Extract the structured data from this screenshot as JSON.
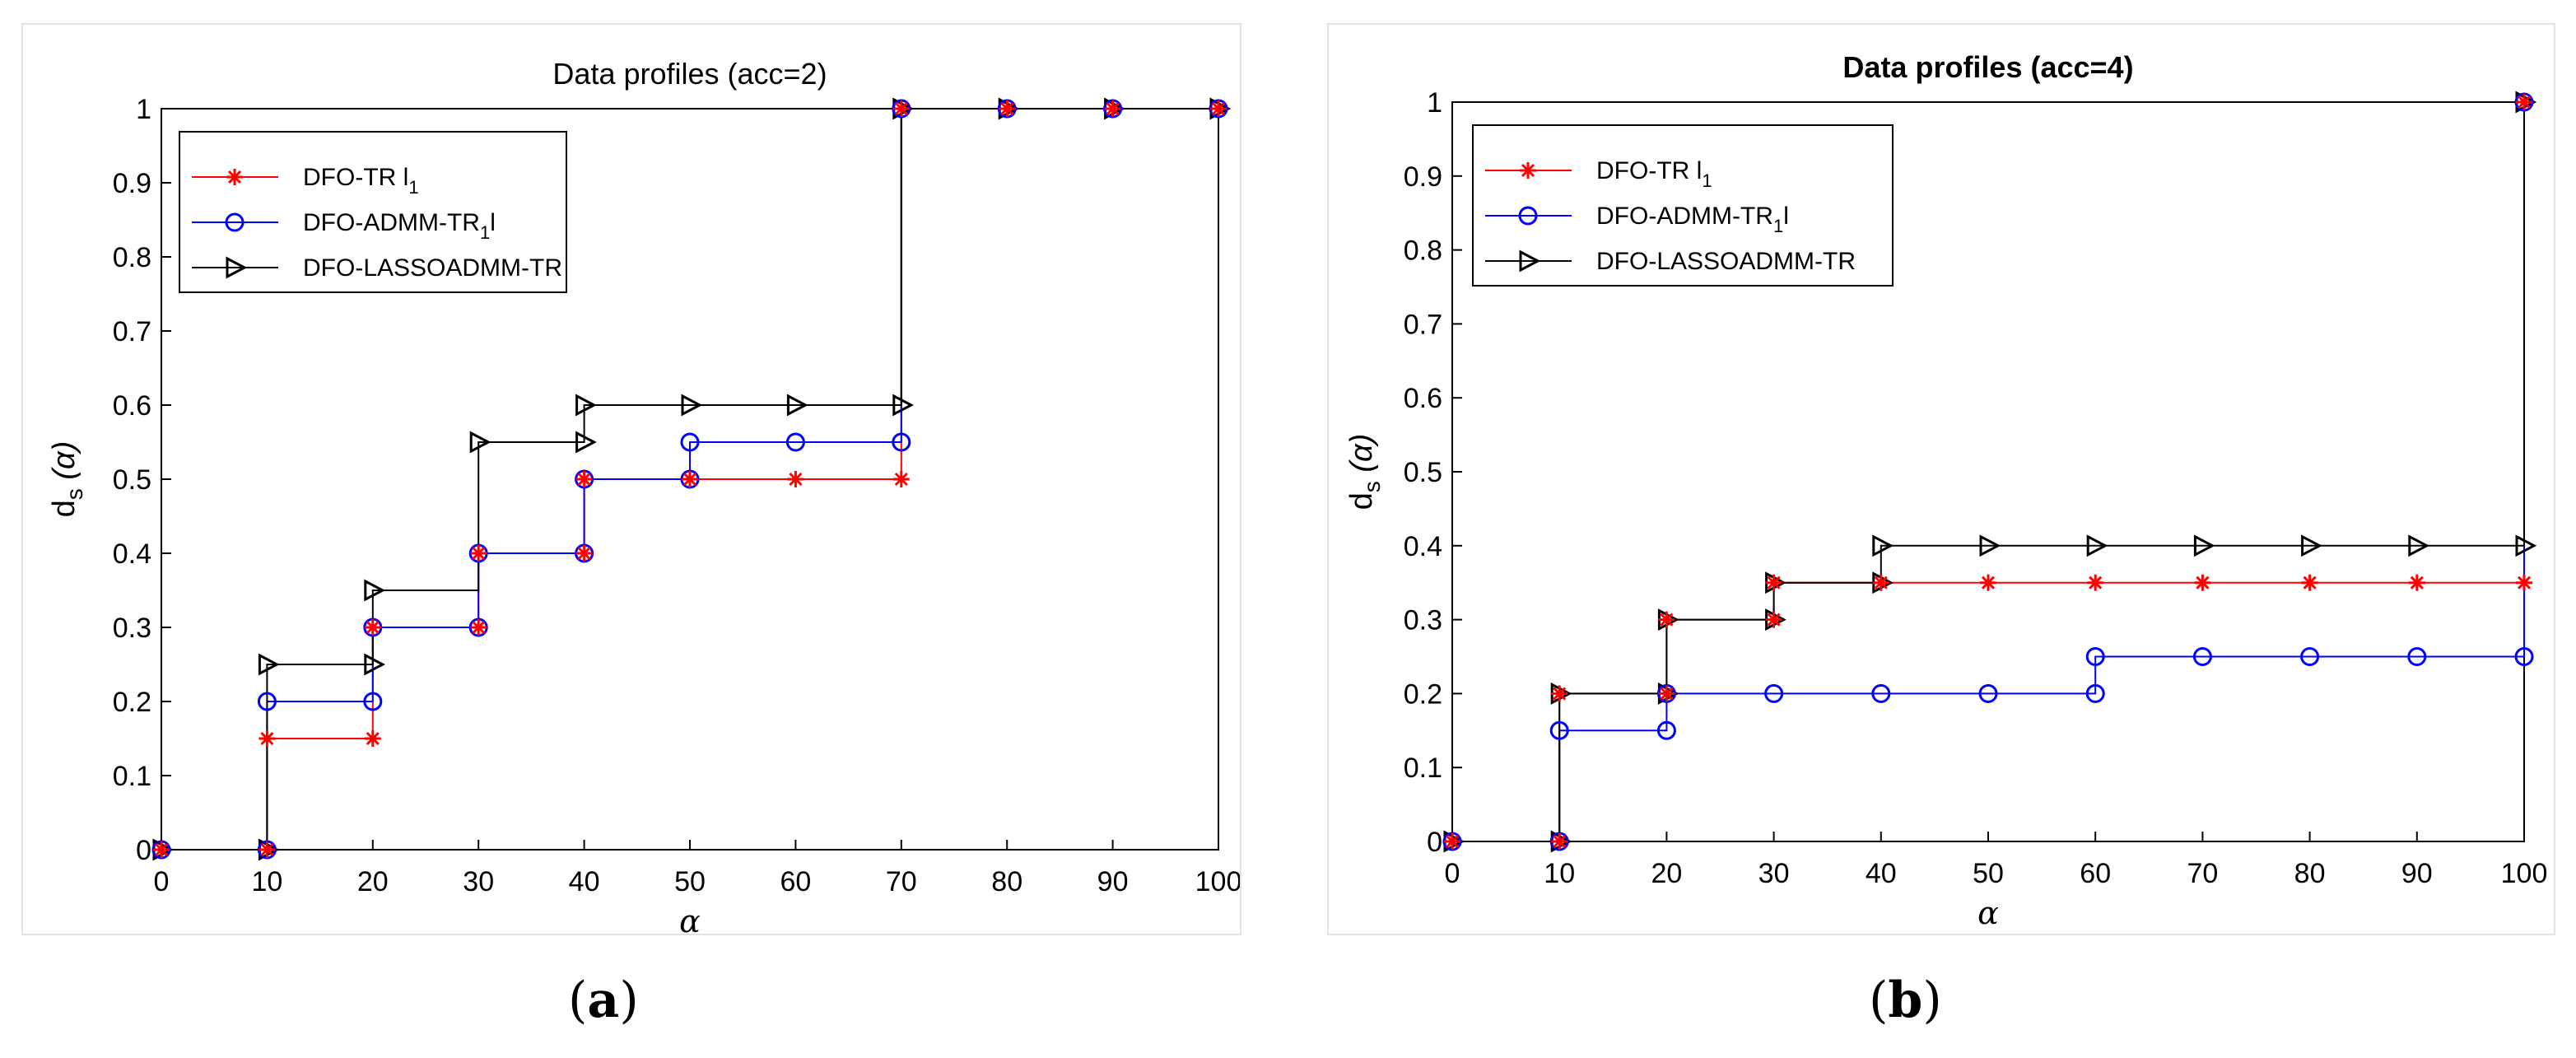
{
  "figure": {
    "captions": [
      {
        "open": "(",
        "letter": "a",
        "close": ")"
      },
      {
        "open": "(",
        "letter": "b",
        "close": ")"
      }
    ]
  },
  "chart_data": [
    {
      "type": "line",
      "title": "Data profiles (acc=2)",
      "title_bold": false,
      "xlabel": "α",
      "ylabel_main": "d",
      "ylabel_sub": "s",
      "ylabel_arg": "(α)",
      "xlim": [
        0,
        100
      ],
      "ylim": [
        0,
        1
      ],
      "xticks": [
        0,
        10,
        20,
        30,
        40,
        50,
        60,
        70,
        80,
        90,
        100
      ],
      "xtick_labels": [
        "0",
        "10",
        "20",
        "30",
        "40",
        "50",
        "60",
        "70",
        "80",
        "90",
        "100"
      ],
      "yticks": [
        0,
        0.1,
        0.2,
        0.3,
        0.4,
        0.5,
        0.6,
        0.7,
        0.8,
        0.9,
        1
      ],
      "ytick_labels": [
        "0",
        "0.1",
        "0.2",
        "0.3",
        "0.4",
        "0.5",
        "0.6",
        "0.7",
        "0.8",
        "0.9",
        "1"
      ],
      "step": "post",
      "x": [
        0,
        10,
        20,
        30,
        40,
        50,
        60,
        70,
        80,
        90,
        100
      ],
      "series": [
        {
          "name": "DFO-TR l",
          "legend_main": "DFO-TR l",
          "legend_sub": "1",
          "legend_tail": "",
          "color": "#ff0000",
          "marker": "star",
          "values": [
            0,
            0.15,
            0.3,
            0.4,
            0.5,
            0.5,
            0.5,
            1,
            1,
            1,
            1
          ]
        },
        {
          "name": "DFO-ADMM-TR1l",
          "legend_main": "DFO-ADMM-TR",
          "legend_sub": "1",
          "legend_tail": "l",
          "color": "#0000ff",
          "marker": "circle",
          "values": [
            0,
            0.2,
            0.3,
            0.4,
            0.5,
            0.55,
            0.55,
            1,
            1,
            1,
            1
          ]
        },
        {
          "name": "DFO-LASSOADMM-TR",
          "legend_main": "DFO-LASSOADMM-TR",
          "legend_sub": "",
          "legend_tail": "",
          "color": "#000000",
          "marker": "triangle-right",
          "values": [
            0,
            0.25,
            0.35,
            0.55,
            0.6,
            0.6,
            0.6,
            1,
            1,
            1,
            1
          ]
        }
      ],
      "marker_points": {
        "DFO-TR l": [
          [
            0,
            0
          ],
          [
            10,
            0
          ],
          [
            10,
            0.15
          ],
          [
            20,
            0.15
          ],
          [
            20,
            0.3
          ],
          [
            30,
            0.3
          ],
          [
            30,
            0.4
          ],
          [
            40,
            0.4
          ],
          [
            40,
            0.5
          ],
          [
            50,
            0.5
          ],
          [
            60,
            0.5
          ],
          [
            70,
            0.5
          ],
          [
            70,
            1
          ],
          [
            80,
            1
          ],
          [
            90,
            1
          ],
          [
            100,
            1
          ]
        ],
        "DFO-ADMM-TR1l": [
          [
            0,
            0
          ],
          [
            10,
            0
          ],
          [
            10,
            0.2
          ],
          [
            20,
            0.2
          ],
          [
            20,
            0.3
          ],
          [
            30,
            0.3
          ],
          [
            30,
            0.4
          ],
          [
            40,
            0.4
          ],
          [
            40,
            0.5
          ],
          [
            50,
            0.5
          ],
          [
            50,
            0.55
          ],
          [
            60,
            0.55
          ],
          [
            70,
            0.55
          ],
          [
            70,
            1
          ],
          [
            80,
            1
          ],
          [
            90,
            1
          ],
          [
            100,
            1
          ]
        ],
        "DFO-LASSOADMM-TR": [
          [
            0,
            0
          ],
          [
            10,
            0
          ],
          [
            10,
            0.25
          ],
          [
            20,
            0.25
          ],
          [
            20,
            0.35
          ],
          [
            30,
            0.55
          ],
          [
            40,
            0.55
          ],
          [
            40,
            0.6
          ],
          [
            50,
            0.6
          ],
          [
            60,
            0.6
          ],
          [
            70,
            0.6
          ],
          [
            70,
            1
          ],
          [
            80,
            1
          ],
          [
            90,
            1
          ],
          [
            100,
            1
          ]
        ]
      },
      "legend_location": "top-left"
    },
    {
      "type": "line",
      "title": "Data profiles (acc=4)",
      "title_bold": true,
      "xlabel": "α",
      "ylabel_main": "d",
      "ylabel_sub": "s",
      "ylabel_arg": "(α)",
      "xlim": [
        0,
        100
      ],
      "ylim": [
        0,
        1
      ],
      "xticks": [
        0,
        10,
        20,
        30,
        40,
        50,
        60,
        70,
        80,
        90,
        100
      ],
      "xtick_labels": [
        "0",
        "10",
        "20",
        "30",
        "40",
        "50",
        "60",
        "70",
        "80",
        "90",
        "100"
      ],
      "yticks": [
        0,
        0.1,
        0.2,
        0.3,
        0.4,
        0.5,
        0.6,
        0.7,
        0.8,
        0.9,
        1
      ],
      "ytick_labels": [
        "0",
        "0.1",
        "0.2",
        "0.3",
        "0.4",
        "0.5",
        "0.6",
        "0.7",
        "0.8",
        "0.9",
        "1"
      ],
      "step": "post",
      "x": [
        0,
        10,
        20,
        30,
        40,
        50,
        60,
        70,
        80,
        90,
        100
      ],
      "series": [
        {
          "name": "DFO-TR l",
          "legend_main": "DFO-TR l",
          "legend_sub": "1",
          "legend_tail": "",
          "color": "#ff0000",
          "marker": "star",
          "values": [
            0,
            0.2,
            0.3,
            0.35,
            0.35,
            0.35,
            0.35,
            0.35,
            0.35,
            0.35,
            1
          ]
        },
        {
          "name": "DFO-ADMM-TR1l",
          "legend_main": "DFO-ADMM-TR",
          "legend_sub": "1",
          "legend_tail": "l",
          "color": "#0000ff",
          "marker": "circle",
          "values": [
            0,
            0.15,
            0.2,
            0.2,
            0.2,
            0.2,
            0.25,
            0.25,
            0.25,
            0.25,
            1
          ]
        },
        {
          "name": "DFO-LASSOADMM-TR",
          "legend_main": "DFO-LASSOADMM-TR",
          "legend_sub": "",
          "legend_tail": "",
          "color": "#000000",
          "marker": "triangle-right",
          "values": [
            0,
            0.2,
            0.3,
            0.35,
            0.4,
            0.4,
            0.4,
            0.4,
            0.4,
            0.4,
            1
          ]
        }
      ],
      "marker_points": {
        "DFO-TR l": [
          [
            0,
            0
          ],
          [
            10,
            0
          ],
          [
            10,
            0.2
          ],
          [
            20,
            0.2
          ],
          [
            20,
            0.3
          ],
          [
            30,
            0.3
          ],
          [
            30,
            0.35
          ],
          [
            40,
            0.35
          ],
          [
            50,
            0.35
          ],
          [
            60,
            0.35
          ],
          [
            70,
            0.35
          ],
          [
            80,
            0.35
          ],
          [
            90,
            0.35
          ],
          [
            100,
            0.35
          ],
          [
            100,
            1
          ]
        ],
        "DFO-ADMM-TR1l": [
          [
            0,
            0
          ],
          [
            10,
            0
          ],
          [
            10,
            0.15
          ],
          [
            20,
            0.15
          ],
          [
            20,
            0.2
          ],
          [
            30,
            0.2
          ],
          [
            40,
            0.2
          ],
          [
            50,
            0.2
          ],
          [
            60,
            0.2
          ],
          [
            60,
            0.25
          ],
          [
            70,
            0.25
          ],
          [
            80,
            0.25
          ],
          [
            90,
            0.25
          ],
          [
            100,
            0.25
          ],
          [
            100,
            1
          ]
        ],
        "DFO-LASSOADMM-TR": [
          [
            0,
            0
          ],
          [
            10,
            0
          ],
          [
            10,
            0.2
          ],
          [
            20,
            0.2
          ],
          [
            20,
            0.3
          ],
          [
            30,
            0.3
          ],
          [
            30,
            0.35
          ],
          [
            40,
            0.35
          ],
          [
            40,
            0.4
          ],
          [
            50,
            0.4
          ],
          [
            60,
            0.4
          ],
          [
            70,
            0.4
          ],
          [
            80,
            0.4
          ],
          [
            90,
            0.4
          ],
          [
            100,
            0.4
          ],
          [
            100,
            1
          ]
        ]
      },
      "legend_location": "top-left"
    }
  ]
}
